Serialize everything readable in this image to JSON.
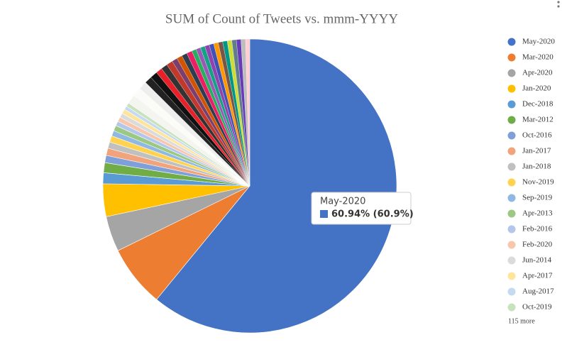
{
  "chart_data": {
    "type": "pie",
    "title": "SUM of Count of Tweets vs. mmm-YYYY",
    "categories": [
      "May-2020",
      "Mar-2020",
      "Apr-2020",
      "Jan-2020",
      "Dec-2018",
      "Mar-2012",
      "Oct-2016",
      "Jan-2017",
      "Jan-2018",
      "Nov-2019",
      "Sep-2019",
      "Apr-2013",
      "Feb-2016",
      "Feb-2020",
      "Jun-2014",
      "Apr-2017",
      "Aug-2017",
      "Oct-2019",
      null,
      null,
      null,
      null,
      null,
      null,
      null,
      null,
      null,
      null,
      null,
      null,
      null,
      null,
      null,
      null,
      null,
      null,
      null,
      null,
      null,
      null,
      null,
      null,
      null
    ],
    "values": [
      60.94,
      6.8,
      3.9,
      3.6,
      1.2,
      1.1,
      0.8,
      0.8,
      0.7,
      0.7,
      0.6,
      0.6,
      0.5,
      0.5,
      0.5,
      0.5,
      0.4,
      0.4,
      1.0,
      1.0,
      0.9,
      0.8,
      0.8,
      0.7,
      0.7,
      0.7,
      0.6,
      0.6,
      0.6,
      0.6,
      0.5,
      0.5,
      0.5,
      0.5,
      0.5,
      0.5,
      0.5,
      0.5,
      0.5,
      0.5,
      0.5,
      0.5,
      0.46
    ],
    "colors": [
      "#4472c4",
      "#ed7d31",
      "#a5a5a5",
      "#ffc000",
      "#5b9bd5",
      "#70ad47",
      "#7f9fd8",
      "#f1a37b",
      "#c0c0c0",
      "#ffd34f",
      "#8fb8e2",
      "#9bc883",
      "#b4c6e9",
      "#f7c6ab",
      "#dbdbdb",
      "#ffe59b",
      "#c5daf0",
      "#c8e2bd",
      "#f4f4f0",
      "#fbfbf7",
      "#eeeeee",
      "#222222",
      "#111111",
      "#e8202a",
      "#333333",
      "#c0392b",
      "#7b3f6e",
      "#d35400",
      "#2c3e50",
      "#e91e63",
      "#27ae60",
      "#9b59b6",
      "#16a085",
      "#8e44ad",
      "#3f51b5",
      "#ff9800",
      "#795548",
      "#009688",
      "#cddc39",
      "#607d8b",
      "#673ab7",
      "#bdbdbd",
      "#ffcdd2"
    ],
    "legend_more": "115 more",
    "tooltip": {
      "label": "May-2020",
      "text": "60.94% (60.9%)"
    }
  }
}
